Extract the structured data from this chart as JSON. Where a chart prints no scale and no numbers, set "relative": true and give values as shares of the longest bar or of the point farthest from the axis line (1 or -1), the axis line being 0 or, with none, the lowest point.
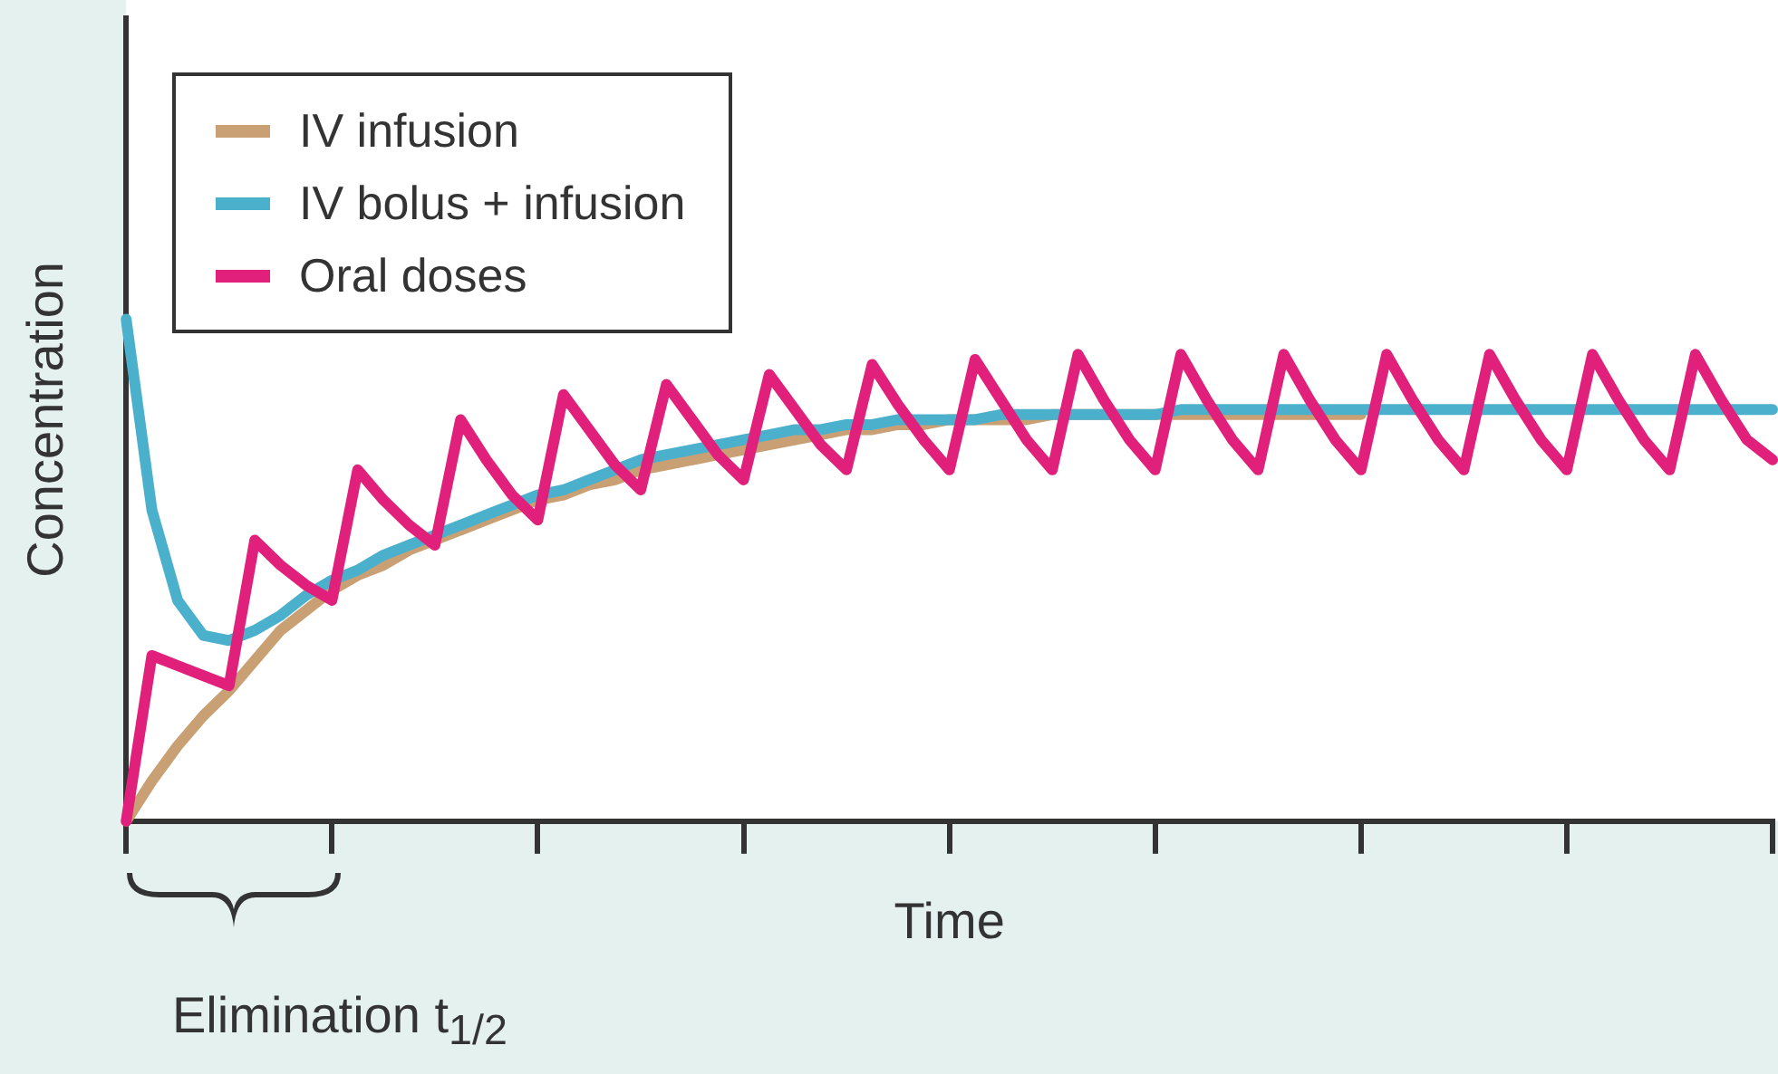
{
  "chart_data": {
    "type": "line",
    "relative": true,
    "xlabel": "Time",
    "ylabel": "Concentration",
    "legend": "top left",
    "grid": false,
    "tick_labels": false,
    "marker": "none",
    "line_style": "solid",
    "categories": [
      null,
      null,
      null,
      null,
      null,
      null,
      null,
      null,
      null,
      null,
      null,
      null,
      null,
      null,
      null,
      null,
      null,
      null,
      null,
      null,
      null,
      null,
      null,
      null,
      null,
      null,
      null,
      null,
      null,
      null,
      null,
      null,
      null,
      null,
      null,
      null,
      null,
      null,
      null,
      null,
      null,
      null,
      null,
      null,
      null,
      null,
      null,
      null,
      null,
      null,
      null,
      null,
      null,
      null,
      null,
      null,
      null,
      null,
      null,
      null,
      null,
      null,
      null,
      null,
      null
    ],
    "annotations": [
      "Elimination t$_{1/2}$"
    ],
    "series": [
      {
        "name": "IV infusion",
        "color": "#c9a073",
        "values": [
          0,
          0.08,
          0.15,
          0.21,
          0.26,
          0.32,
          0.38,
          0.42,
          0.46,
          0.49,
          0.51,
          0.54,
          0.56,
          0.58,
          0.6,
          0.62,
          0.64,
          0.65,
          0.67,
          0.68,
          0.7,
          0.71,
          0.72,
          0.73,
          0.74,
          0.75,
          0.76,
          0.77,
          0.78,
          0.78,
          0.79,
          0.79,
          0.8,
          0.8,
          0.8,
          0.8,
          0.81,
          0.81,
          0.81,
          0.81,
          0.81,
          0.81,
          0.81,
          0.81,
          0.81,
          0.81,
          0.81,
          0.81,
          0.81,
          null,
          null,
          null,
          null,
          null,
          null,
          null,
          null,
          null,
          null,
          null,
          null,
          null,
          null,
          null,
          null
        ]
      },
      {
        "name": "IV bolus + infusion",
        "color": "#4bb0cc",
        "values": [
          1,
          0.62,
          0.44,
          0.37,
          0.36,
          0.38,
          0.41,
          0.45,
          0.48,
          0.5,
          0.53,
          0.55,
          0.57,
          0.59,
          0.61,
          0.63,
          0.65,
          0.66,
          0.68,
          0.7,
          0.72,
          0.73,
          0.74,
          0.75,
          0.76,
          0.77,
          0.78,
          0.78,
          0.79,
          0.79,
          0.8,
          0.8,
          0.8,
          0.8,
          0.81,
          0.81,
          0.81,
          0.81,
          0.81,
          0.81,
          0.81,
          0.82,
          0.82,
          0.82,
          0.82,
          0.82,
          0.82,
          0.82,
          0.82,
          0.82,
          0.82,
          0.82,
          0.82,
          0.82,
          0.82,
          0.82,
          0.82,
          0.82,
          0.82,
          0.82,
          0.82,
          0.82,
          0.82,
          0.82,
          0.82
        ]
      },
      {
        "name": "Oral doses",
        "color": "#e0207a",
        "values": [
          0,
          0.33,
          0.31,
          0.29,
          0.27,
          0.56,
          0.51,
          0.47,
          0.44,
          0.7,
          0.64,
          0.59,
          0.55,
          0.8,
          0.72,
          0.65,
          0.6,
          0.85,
          0.78,
          0.71,
          0.66,
          0.87,
          0.8,
          0.73,
          0.68,
          0.89,
          0.82,
          0.75,
          0.7,
          0.91,
          0.83,
          0.76,
          0.7,
          0.92,
          0.84,
          0.76,
          0.7,
          0.93,
          0.84,
          0.76,
          0.7,
          0.93,
          0.84,
          0.76,
          0.7,
          0.93,
          0.84,
          0.76,
          0.7,
          0.93,
          0.84,
          0.76,
          0.7,
          0.93,
          0.84,
          0.76,
          0.7,
          0.93,
          0.84,
          0.76,
          0.7,
          0.93,
          0.84,
          0.76,
          0.72
        ]
      }
    ]
  }
}
